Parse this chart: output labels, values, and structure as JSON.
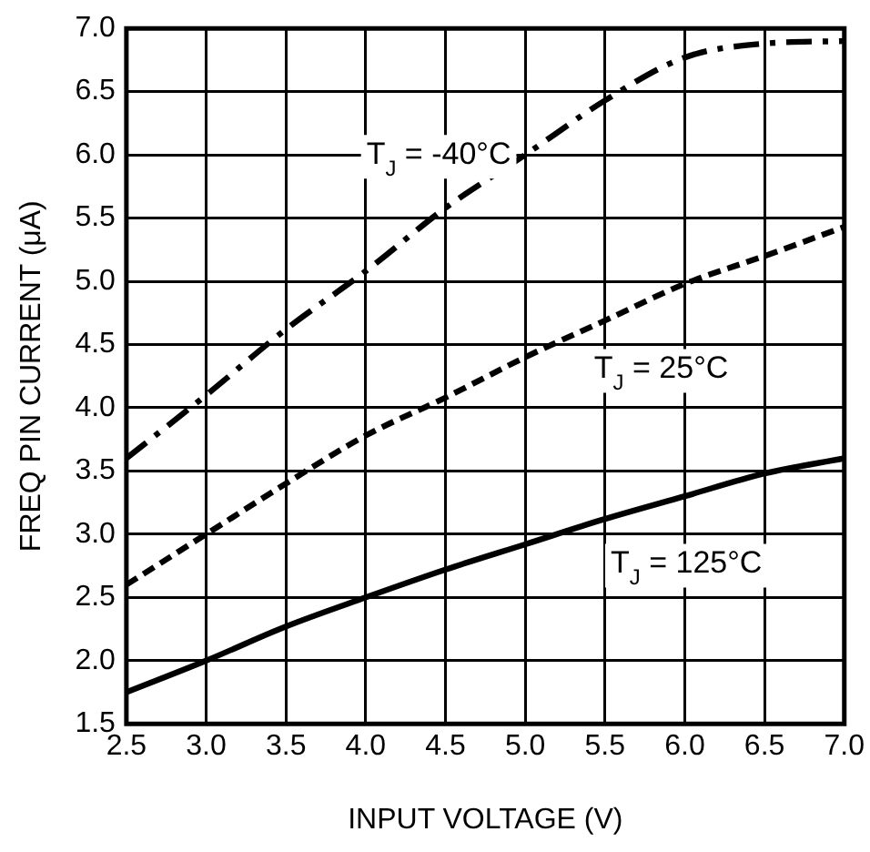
{
  "chart_data": {
    "type": "line",
    "xlabel": "INPUT VOLTAGE (V)",
    "ylabel": "FREQ PIN CURRENT (μA)",
    "x": [
      2.5,
      3.0,
      3.5,
      4.0,
      4.5,
      5.0,
      5.5,
      6.0,
      6.5,
      7.0
    ],
    "series": [
      {
        "color": "#000000",
        "line_style": "dashdot",
        "values": [
          3.6,
          4.1,
          4.62,
          5.08,
          5.58,
          6.0,
          6.43,
          6.77,
          6.88,
          6.9
        ]
      },
      {
        "color": "#000000",
        "line_style": "dashed",
        "values": [
          2.6,
          3.0,
          3.4,
          3.78,
          4.08,
          4.4,
          4.69,
          4.98,
          5.2,
          5.43
        ]
      },
      {
        "color": "#000000",
        "line_style": "solid",
        "values": [
          1.75,
          2.0,
          2.27,
          2.5,
          2.72,
          2.92,
          3.12,
          3.3,
          3.48,
          3.6
        ]
      }
    ],
    "annotations": [
      "T$_{J}$ = -40°C",
      "T$_{J}$ = 25°C",
      "T$_{J}$ = 125°C"
    ],
    "xlim": [
      2.5,
      7.0
    ],
    "xticks": [
      {
        "value": 2.5,
        "label": "2.5"
      },
      {
        "value": 3.0,
        "label": "3.0"
      },
      {
        "value": 3.5,
        "label": "3.5"
      },
      {
        "value": 4.0,
        "label": "4.0"
      },
      {
        "value": 4.5,
        "label": "4.5"
      },
      {
        "value": 5.0,
        "label": "5.0"
      },
      {
        "value": 5.5,
        "label": "5.5"
      },
      {
        "value": 6.0,
        "label": "6.0"
      },
      {
        "value": 6.5,
        "label": "6.5"
      },
      {
        "value": 7.0,
        "label": "7.0"
      }
    ],
    "ylim": [
      1.5,
      7.0
    ],
    "yticks": [
      {
        "value": 1.5,
        "label": "1.5"
      },
      {
        "value": 2.0,
        "label": "2.0"
      },
      {
        "value": 2.5,
        "label": "2.5"
      },
      {
        "value": 3.0,
        "label": "3.0"
      },
      {
        "value": 3.5,
        "label": "3.5"
      },
      {
        "value": 4.0,
        "label": "4.0"
      },
      {
        "value": 4.5,
        "label": "4.5"
      },
      {
        "value": 5.0,
        "label": "5.0"
      },
      {
        "value": 5.5,
        "label": "5.5"
      },
      {
        "value": 6.0,
        "label": "6.0"
      },
      {
        "value": 6.5,
        "label": "6.5"
      },
      {
        "value": 7.0,
        "label": "7.0"
      }
    ],
    "grid": true,
    "legend": false,
    "marker": "none"
  }
}
